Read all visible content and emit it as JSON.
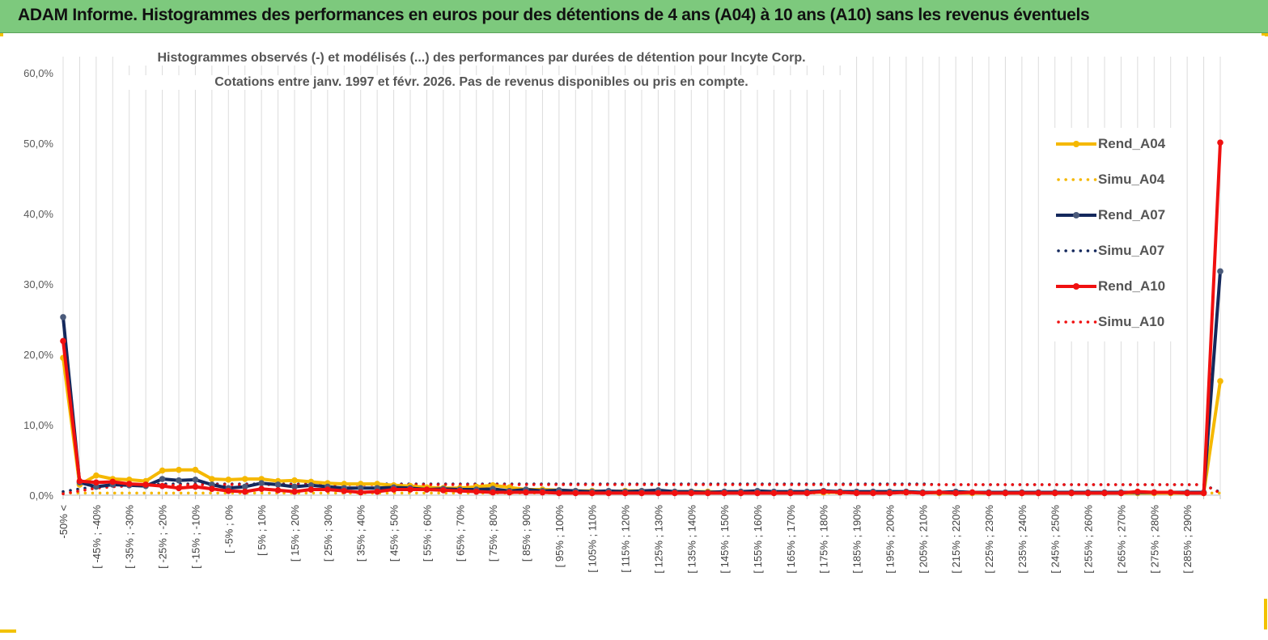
{
  "header": {
    "title": "ADAM Informe. Histogrammes des performances en euros pour des détentions de 4 ans (A04) à 10 ans (A10) sans les revenus éventuels"
  },
  "colors": {
    "header_bg": "#7dc97d",
    "accent": "#f2c200",
    "A04": "#f5b800",
    "A07": "#14285c",
    "A10": "#f01010"
  },
  "chart_data": {
    "type": "line",
    "title": "Histogrammes observés (-) et modélisés (...) des performances par durées de détention pour Incyte  Corp.",
    "subtitle": "Cotations entre janv. 1997 et févr. 2026. Pas de revenus disponibles ou pris en compte.",
    "xlabel": "",
    "ylabel": "",
    "ylim": [
      0,
      60
    ],
    "y_ticks": [
      "0,0%",
      "10,0%",
      "20,0%",
      "30,0%",
      "40,0%",
      "50,0%",
      "60,0%"
    ],
    "grid": "vertical",
    "legend_position": "right",
    "x_tick_labels": [
      "-50% <",
      "[ -45% ; -40%",
      "[ -35% ; -30%",
      "[ -25% ; -20%",
      "[ -15% ; -10%",
      "[ -5% ; 0%",
      "[ 5% ; 10%",
      "[ 15% ; 20%",
      "[ 25% ; 30%",
      "[ 35% ; 40%",
      "[ 45% ; 50%",
      "[ 55% ; 60%",
      "[ 65% ; 70%",
      "[ 75% ; 80%",
      "[ 85% ; 90%",
      "[ 95% ; 100%",
      "[ 105% ; 110%",
      "[ 115% ; 120%",
      "[ 125% ; 130%",
      "[ 135% ; 140%",
      "[ 145% ; 150%",
      "[ 155% ; 160%",
      "[ 165% ; 170%",
      "[ 175% ; 180%",
      "[ 185% ; 190%",
      "[ 195% ; 200%",
      "[ 205% ; 210%",
      "[ 215% ; 220%",
      "[ 225% ; 230%",
      "[ 235% ; 240%",
      "[ 245% ; 250%",
      "[ 255% ; 260%",
      "[ 265% ; 270%",
      "[ 275% ; 280%",
      "[ 285% ; 290%"
    ],
    "series": [
      {
        "name": "Rend_A04",
        "style": "solid",
        "color": "#f5b800",
        "values": [
          19.5,
          1.5,
          2.8,
          2.3,
          2.2,
          2.0,
          3.5,
          3.6,
          3.6,
          2.3,
          2.2,
          2.3,
          2.3,
          2.0,
          2.1,
          1.9,
          1.7,
          1.6,
          1.6,
          1.6,
          1.4,
          1.3,
          1.1,
          1.0,
          1.0,
          1.2,
          1.4,
          1.1,
          0.8,
          0.8,
          0.7,
          0.6,
          0.6,
          0.5,
          0.6,
          0.6,
          0.5,
          0.5,
          0.5,
          0.5,
          0.4,
          0.4,
          0.5,
          0.4,
          0.4,
          0.4,
          0.4,
          0.4,
          0.4,
          0.4,
          0.4,
          0.4,
          0.4,
          0.3,
          0.3,
          0.3,
          0.3,
          0.3,
          0.3,
          0.3,
          0.3,
          0.3,
          0.3,
          0.3,
          0.3,
          0.3,
          0.3,
          0.3,
          0.3,
          0.3,
          16.2
        ]
      },
      {
        "name": "Simu_A04",
        "style": "dotted",
        "color": "#f5b800",
        "values": [
          0.3,
          0.3,
          0.3,
          0.3,
          0.3,
          0.3,
          0.3,
          0.3,
          0.3,
          0.3,
          0.3,
          0.3,
          0.3,
          0.3,
          0.3,
          0.3,
          0.3,
          0.3,
          0.3,
          0.3,
          0.3,
          0.3,
          0.3,
          0.3,
          0.3,
          0.3,
          0.3,
          0.3,
          0.3,
          0.3,
          0.3,
          0.3,
          0.3,
          0.3,
          0.3,
          0.3,
          0.3,
          0.3,
          0.3,
          0.3,
          0.3,
          0.3,
          0.3,
          0.3,
          0.3,
          0.3,
          0.3,
          0.3,
          0.3,
          0.3,
          0.3,
          0.3,
          0.3,
          0.3,
          0.3,
          0.3,
          0.3,
          0.3,
          0.3,
          0.3,
          0.3,
          0.3,
          0.3,
          0.3,
          0.3,
          0.3,
          0.3,
          0.3,
          0.3,
          0.3,
          0.3
        ]
      },
      {
        "name": "Rend_A07",
        "style": "solid",
        "color": "#14285c",
        "values": [
          25.3,
          1.8,
          1.2,
          1.5,
          1.4,
          1.3,
          2.3,
          2.1,
          2.2,
          1.5,
          1.0,
          1.2,
          1.7,
          1.5,
          1.2,
          1.4,
          1.2,
          1.0,
          1.0,
          1.0,
          1.1,
          1.0,
          0.8,
          0.9,
          0.8,
          0.8,
          0.9,
          0.6,
          0.8,
          0.6,
          0.7,
          0.6,
          0.5,
          0.6,
          0.5,
          0.6,
          0.7,
          0.5,
          0.5,
          0.4,
          0.5,
          0.5,
          0.6,
          0.5,
          0.5,
          0.5,
          0.6,
          0.5,
          0.5,
          0.5,
          0.5,
          0.5,
          0.4,
          0.4,
          0.5,
          0.4,
          0.4,
          0.4,
          0.4,
          0.4,
          0.4,
          0.4,
          0.4,
          0.4,
          0.4,
          0.4,
          0.4,
          0.4,
          0.4,
          0.4,
          31.8
        ]
      },
      {
        "name": "Simu_A07",
        "style": "dotted",
        "color": "#14285c",
        "values": [
          0.5,
          0.9,
          1.2,
          1.4,
          1.5,
          1.5,
          1.6,
          1.6,
          1.6,
          1.6,
          1.6,
          1.6,
          1.6,
          1.6,
          1.6,
          1.6,
          1.6,
          1.6,
          1.6,
          1.6,
          1.6,
          1.6,
          1.6,
          1.6,
          1.6,
          1.6,
          1.6,
          1.6,
          1.6,
          1.6,
          1.6,
          1.6,
          1.6,
          1.6,
          1.6,
          1.6,
          1.6,
          1.6,
          1.6,
          1.6,
          1.6,
          1.6,
          1.6,
          1.6,
          1.6,
          1.6,
          1.6,
          1.6,
          1.6,
          1.6,
          1.6,
          1.6,
          1.6,
          1.5,
          1.5,
          1.5,
          1.5,
          1.5,
          1.5,
          1.5,
          1.5,
          1.5,
          1.5,
          1.5,
          1.5,
          1.5,
          1.5,
          1.5,
          1.5,
          1.5,
          0.4
        ]
      },
      {
        "name": "Rend_A10",
        "style": "solid",
        "color": "#f01010",
        "values": [
          21.9,
          2.0,
          1.8,
          1.9,
          1.6,
          1.5,
          1.3,
          1.0,
          1.2,
          0.9,
          0.6,
          0.5,
          0.9,
          0.7,
          0.5,
          0.8,
          0.8,
          0.6,
          0.4,
          0.5,
          0.8,
          0.8,
          0.8,
          0.7,
          0.6,
          0.5,
          0.4,
          0.4,
          0.4,
          0.4,
          0.3,
          0.3,
          0.3,
          0.3,
          0.3,
          0.3,
          0.3,
          0.3,
          0.3,
          0.3,
          0.3,
          0.3,
          0.3,
          0.3,
          0.3,
          0.3,
          0.5,
          0.4,
          0.3,
          0.3,
          0.3,
          0.4,
          0.3,
          0.4,
          0.3,
          0.4,
          0.3,
          0.3,
          0.3,
          0.3,
          0.3,
          0.3,
          0.3,
          0.3,
          0.3,
          0.5,
          0.4,
          0.4,
          0.3,
          0.3,
          50.1
        ]
      },
      {
        "name": "Simu_A10",
        "style": "dotted",
        "color": "#f01010",
        "values": [
          0.2,
          0.6,
          1.0,
          1.2,
          1.3,
          1.4,
          1.4,
          1.4,
          1.5,
          1.5,
          1.5,
          1.5,
          1.5,
          1.5,
          1.5,
          1.5,
          1.5,
          1.5,
          1.5,
          1.5,
          1.5,
          1.5,
          1.5,
          1.5,
          1.5,
          1.5,
          1.5,
          1.5,
          1.5,
          1.5,
          1.5,
          1.5,
          1.5,
          1.5,
          1.5,
          1.5,
          1.5,
          1.5,
          1.5,
          1.5,
          1.5,
          1.5,
          1.5,
          1.5,
          1.5,
          1.5,
          1.5,
          1.5,
          1.5,
          1.5,
          1.5,
          1.5,
          1.5,
          1.5,
          1.5,
          1.5,
          1.5,
          1.5,
          1.5,
          1.5,
          1.5,
          1.5,
          1.5,
          1.5,
          1.5,
          1.5,
          1.5,
          1.5,
          1.5,
          1.5,
          0.3
        ]
      }
    ]
  }
}
